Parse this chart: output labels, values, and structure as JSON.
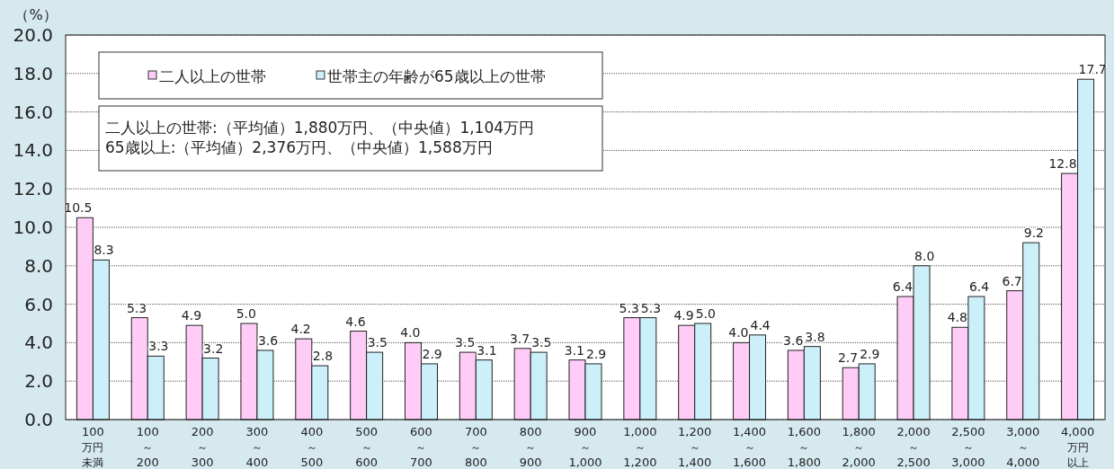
{
  "chart_data": {
    "type": "bar",
    "ylabel": "（%）",
    "categories": [
      "100万円未満",
      "100～200",
      "200～300",
      "300～400",
      "400～500",
      "500～600",
      "600～700",
      "700～800",
      "800～900",
      "900～1,000",
      "1,000～1,200",
      "1,200～1,400",
      "1,400～1,600",
      "1,600～1,800",
      "1,800～2,000",
      "2,000～2,500",
      "2,500～3,000",
      "3,000～4,000",
      "4,000万円以上"
    ],
    "series": [
      {
        "name": "二人以上の世帯",
        "color": "#ffccf7",
        "values": [
          10.5,
          5.3,
          4.9,
          5.0,
          4.2,
          4.6,
          4.0,
          3.5,
          3.7,
          3.1,
          5.3,
          4.9,
          4.0,
          3.6,
          2.7,
          6.4,
          4.8,
          6.7,
          12.8
        ],
        "value_labels": [
          "10.5",
          "5.3",
          "4.9",
          "5.0",
          "4.2",
          "4.6",
          "4.0",
          "3.5",
          "3.7",
          "3.1",
          "5.3",
          "4.9",
          "4.0",
          "3.6",
          "2.7",
          "6.4",
          "4.8",
          "6.7",
          "12.8"
        ]
      },
      {
        "name": "世帯主の年齢が65歳以上の世帯",
        "color": "#ccf0fa",
        "values": [
          8.3,
          3.3,
          3.2,
          3.6,
          2.8,
          3.5,
          2.9,
          3.1,
          3.5,
          2.9,
          5.3,
          5.0,
          4.4,
          3.8,
          2.9,
          8.0,
          6.4,
          9.2,
          17.7
        ],
        "value_labels": [
          "8.3",
          "3.3",
          "3.2",
          "3.6",
          "2.8",
          "3.5",
          "2.9",
          "3.1",
          "3.5",
          "2.9",
          "5.3",
          "5.0",
          "4.4",
          "3.8",
          "2.9",
          "8.0",
          "6.4",
          "9.2",
          "17.7"
        ]
      }
    ],
    "ylim": [
      0,
      20
    ],
    "yticks": [
      {
        "value": 0,
        "label": "0.0"
      },
      {
        "value": 2,
        "label": "2.0"
      },
      {
        "value": 4,
        "label": "4.0"
      },
      {
        "value": 6,
        "label": "6.0"
      },
      {
        "value": 8,
        "label": "8.0"
      },
      {
        "value": 10,
        "label": "10.0"
      },
      {
        "value": 12,
        "label": "12.0"
      },
      {
        "value": 14,
        "label": "14.0"
      },
      {
        "value": 16,
        "label": "16.0"
      },
      {
        "value": 18,
        "label": "18.0"
      },
      {
        "value": 20,
        "label": "20.0"
      }
    ],
    "grid": "y",
    "legend": "top left",
    "annotations": [
      "二人以上の世帯:（平均値）1,880万円、（中央値）1,104万円",
      "65歳以上:（平均値）2,376万円、（中央値）1,588万円"
    ]
  }
}
